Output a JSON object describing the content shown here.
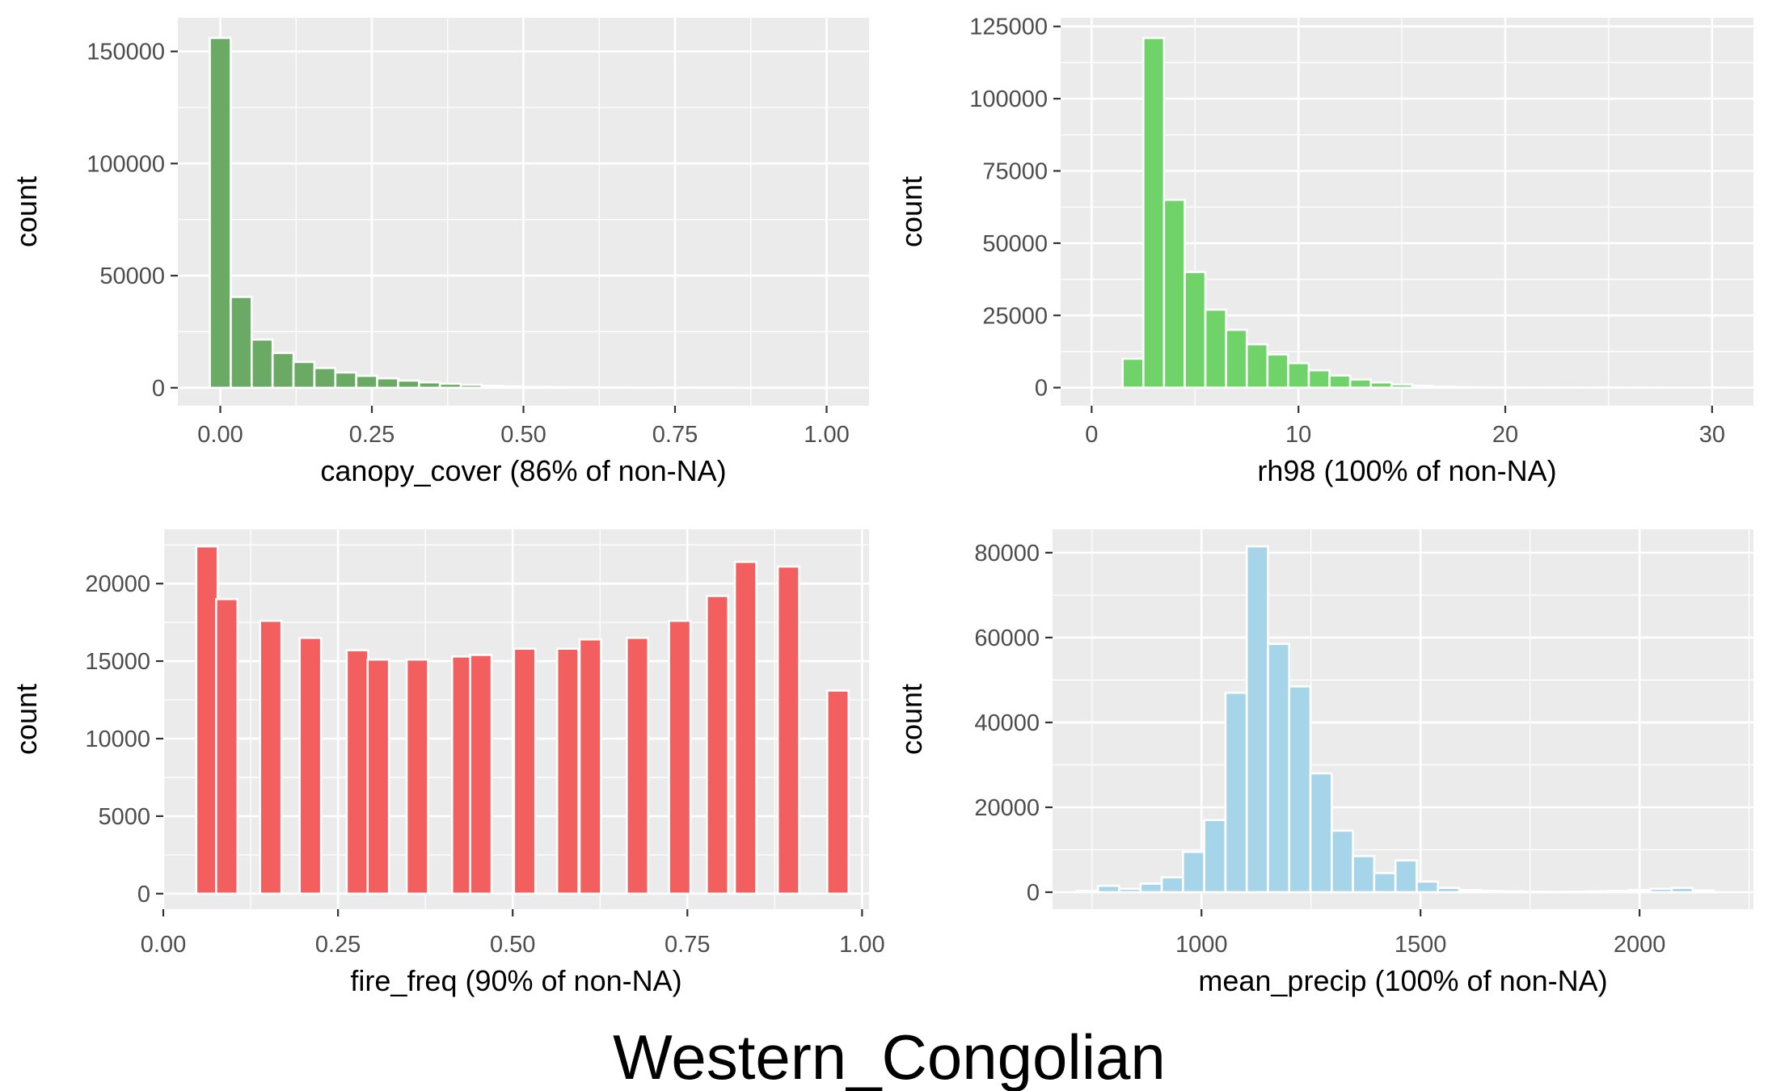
{
  "title": "Western_Congolian",
  "chart_data": [
    {
      "type": "bar",
      "histogram": true,
      "xlabel": "canopy_cover (86% of non-NA)",
      "ylabel": "count",
      "color": "#6aaa64",
      "xlim": [
        -0.07,
        1.07
      ],
      "ylim": [
        -8000,
        165000
      ],
      "xticks": [
        0.0,
        0.25,
        0.5,
        0.75,
        1.0
      ],
      "xtick_labels": [
        "0.00",
        "0.25",
        "0.50",
        "0.75",
        "1.00"
      ],
      "yticks": [
        0,
        50000,
        100000,
        150000
      ],
      "ytick_labels": [
        "0",
        "50000",
        "100000",
        "150000"
      ],
      "bin_width": 0.0345,
      "x": [
        0.0,
        0.0345,
        0.069,
        0.1035,
        0.138,
        0.1725,
        0.207,
        0.2415,
        0.276,
        0.3105,
        0.345,
        0.3795,
        0.414,
        0.4485,
        0.483,
        0.5175,
        0.552,
        0.5865,
        0.621,
        0.6555,
        0.69,
        0.7245,
        0.759,
        0.7935,
        0.828,
        0.8625,
        0.897,
        0.9315,
        0.966,
        1.0
      ],
      "values": [
        156000,
        40500,
        21500,
        15500,
        11500,
        8800,
        6800,
        5300,
        4200,
        3200,
        2400,
        1800,
        1300,
        900,
        600,
        400,
        300,
        250,
        200,
        150,
        120,
        100,
        80,
        60,
        50,
        40,
        30,
        20,
        10,
        5
      ]
    },
    {
      "type": "bar",
      "histogram": true,
      "xlabel": "rh98 (100% of non-NA)",
      "ylabel": "count",
      "color": "#6fd36a",
      "xlim": [
        -1.5,
        32.0
      ],
      "ylim": [
        -6250,
        128000
      ],
      "xticks": [
        0,
        10,
        20,
        30
      ],
      "xtick_labels": [
        "0",
        "10",
        "20",
        "30"
      ],
      "yticks": [
        0,
        25000,
        50000,
        75000,
        100000,
        125000
      ],
      "ytick_labels": [
        "0",
        "25000",
        "50000",
        "75000",
        "100000",
        "125000"
      ],
      "bin_width": 1.0,
      "x": [
        2,
        3,
        4,
        5,
        6,
        7,
        8,
        9,
        10,
        11,
        12,
        13,
        14,
        15,
        16,
        17,
        18,
        19,
        20,
        21,
        22,
        23,
        24,
        25,
        26,
        27,
        28,
        29,
        30
      ],
      "values": [
        10000,
        121000,
        65000,
        40000,
        27000,
        20000,
        15000,
        11500,
        8500,
        6000,
        4200,
        2800,
        1800,
        1100,
        600,
        350,
        200,
        120,
        80,
        50,
        30,
        20,
        15,
        10,
        8,
        5,
        3,
        2,
        1
      ]
    },
    {
      "type": "bar",
      "histogram": true,
      "xlabel": "fire_freq (90% of non-NA)",
      "ylabel": "count",
      "color": "#f35f5f",
      "xlim": [
        0.0,
        1.01
      ],
      "ylim": [
        -1000,
        23500
      ],
      "xticks": [
        0.0,
        0.25,
        0.5,
        0.75,
        1.0
      ],
      "xtick_labels": [
        "0.00",
        "0.25",
        "0.50",
        "0.75",
        "1.00"
      ],
      "yticks": [
        0,
        5000,
        10000,
        15000,
        20000
      ],
      "ytick_labels": [
        "0",
        "5000",
        "10000",
        "15000",
        "20000"
      ],
      "bin_width": 0.0306,
      "x": [
        0.0625,
        0.0909,
        0.1538,
        0.2105,
        0.2778,
        0.3077,
        0.3636,
        0.4286,
        0.4545,
        0.5172,
        0.5789,
        0.6111,
        0.6786,
        0.7391,
        0.7931,
        0.8333,
        0.8947,
        0.9655
      ],
      "values": [
        22400,
        19000,
        17600,
        16500,
        15700,
        15100,
        15100,
        15300,
        15400,
        15800,
        15800,
        16400,
        16500,
        17600,
        19200,
        21400,
        21100,
        13100
      ]
    },
    {
      "type": "bar",
      "histogram": true,
      "xlabel": "mean_precip (100% of non-NA)",
      "ylabel": "count",
      "color": "#a6d5ea",
      "xlim": [
        660,
        2260
      ],
      "ylim": [
        -4000,
        85500
      ],
      "xticks": [
        1000,
        1500,
        2000
      ],
      "xtick_labels": [
        "1000",
        "1500",
        "2000"
      ],
      "yticks": [
        0,
        20000,
        40000,
        60000,
        80000
      ],
      "ytick_labels": [
        "0",
        "20000",
        "40000",
        "60000",
        "80000"
      ],
      "bin_width": 48.5,
      "x": [
        739.5,
        788,
        836.5,
        885,
        933.5,
        982,
        1030.5,
        1079,
        1127.5,
        1176,
        1224.5,
        1273,
        1321.5,
        1370,
        1418.5,
        1467,
        1515.5,
        1564,
        1612.5,
        1661,
        1709.5,
        1758,
        1806.5,
        1855,
        1903.5,
        1952,
        2000.5,
        2049,
        2097.5,
        2146
      ],
      "values": [
        300,
        1500,
        800,
        2000,
        3500,
        9500,
        17000,
        47000,
        81500,
        58500,
        48500,
        28000,
        14500,
        8500,
        4500,
        7500,
        2500,
        1000,
        500,
        300,
        200,
        100,
        80,
        100,
        200,
        300,
        500,
        800,
        1000,
        400
      ]
    }
  ]
}
